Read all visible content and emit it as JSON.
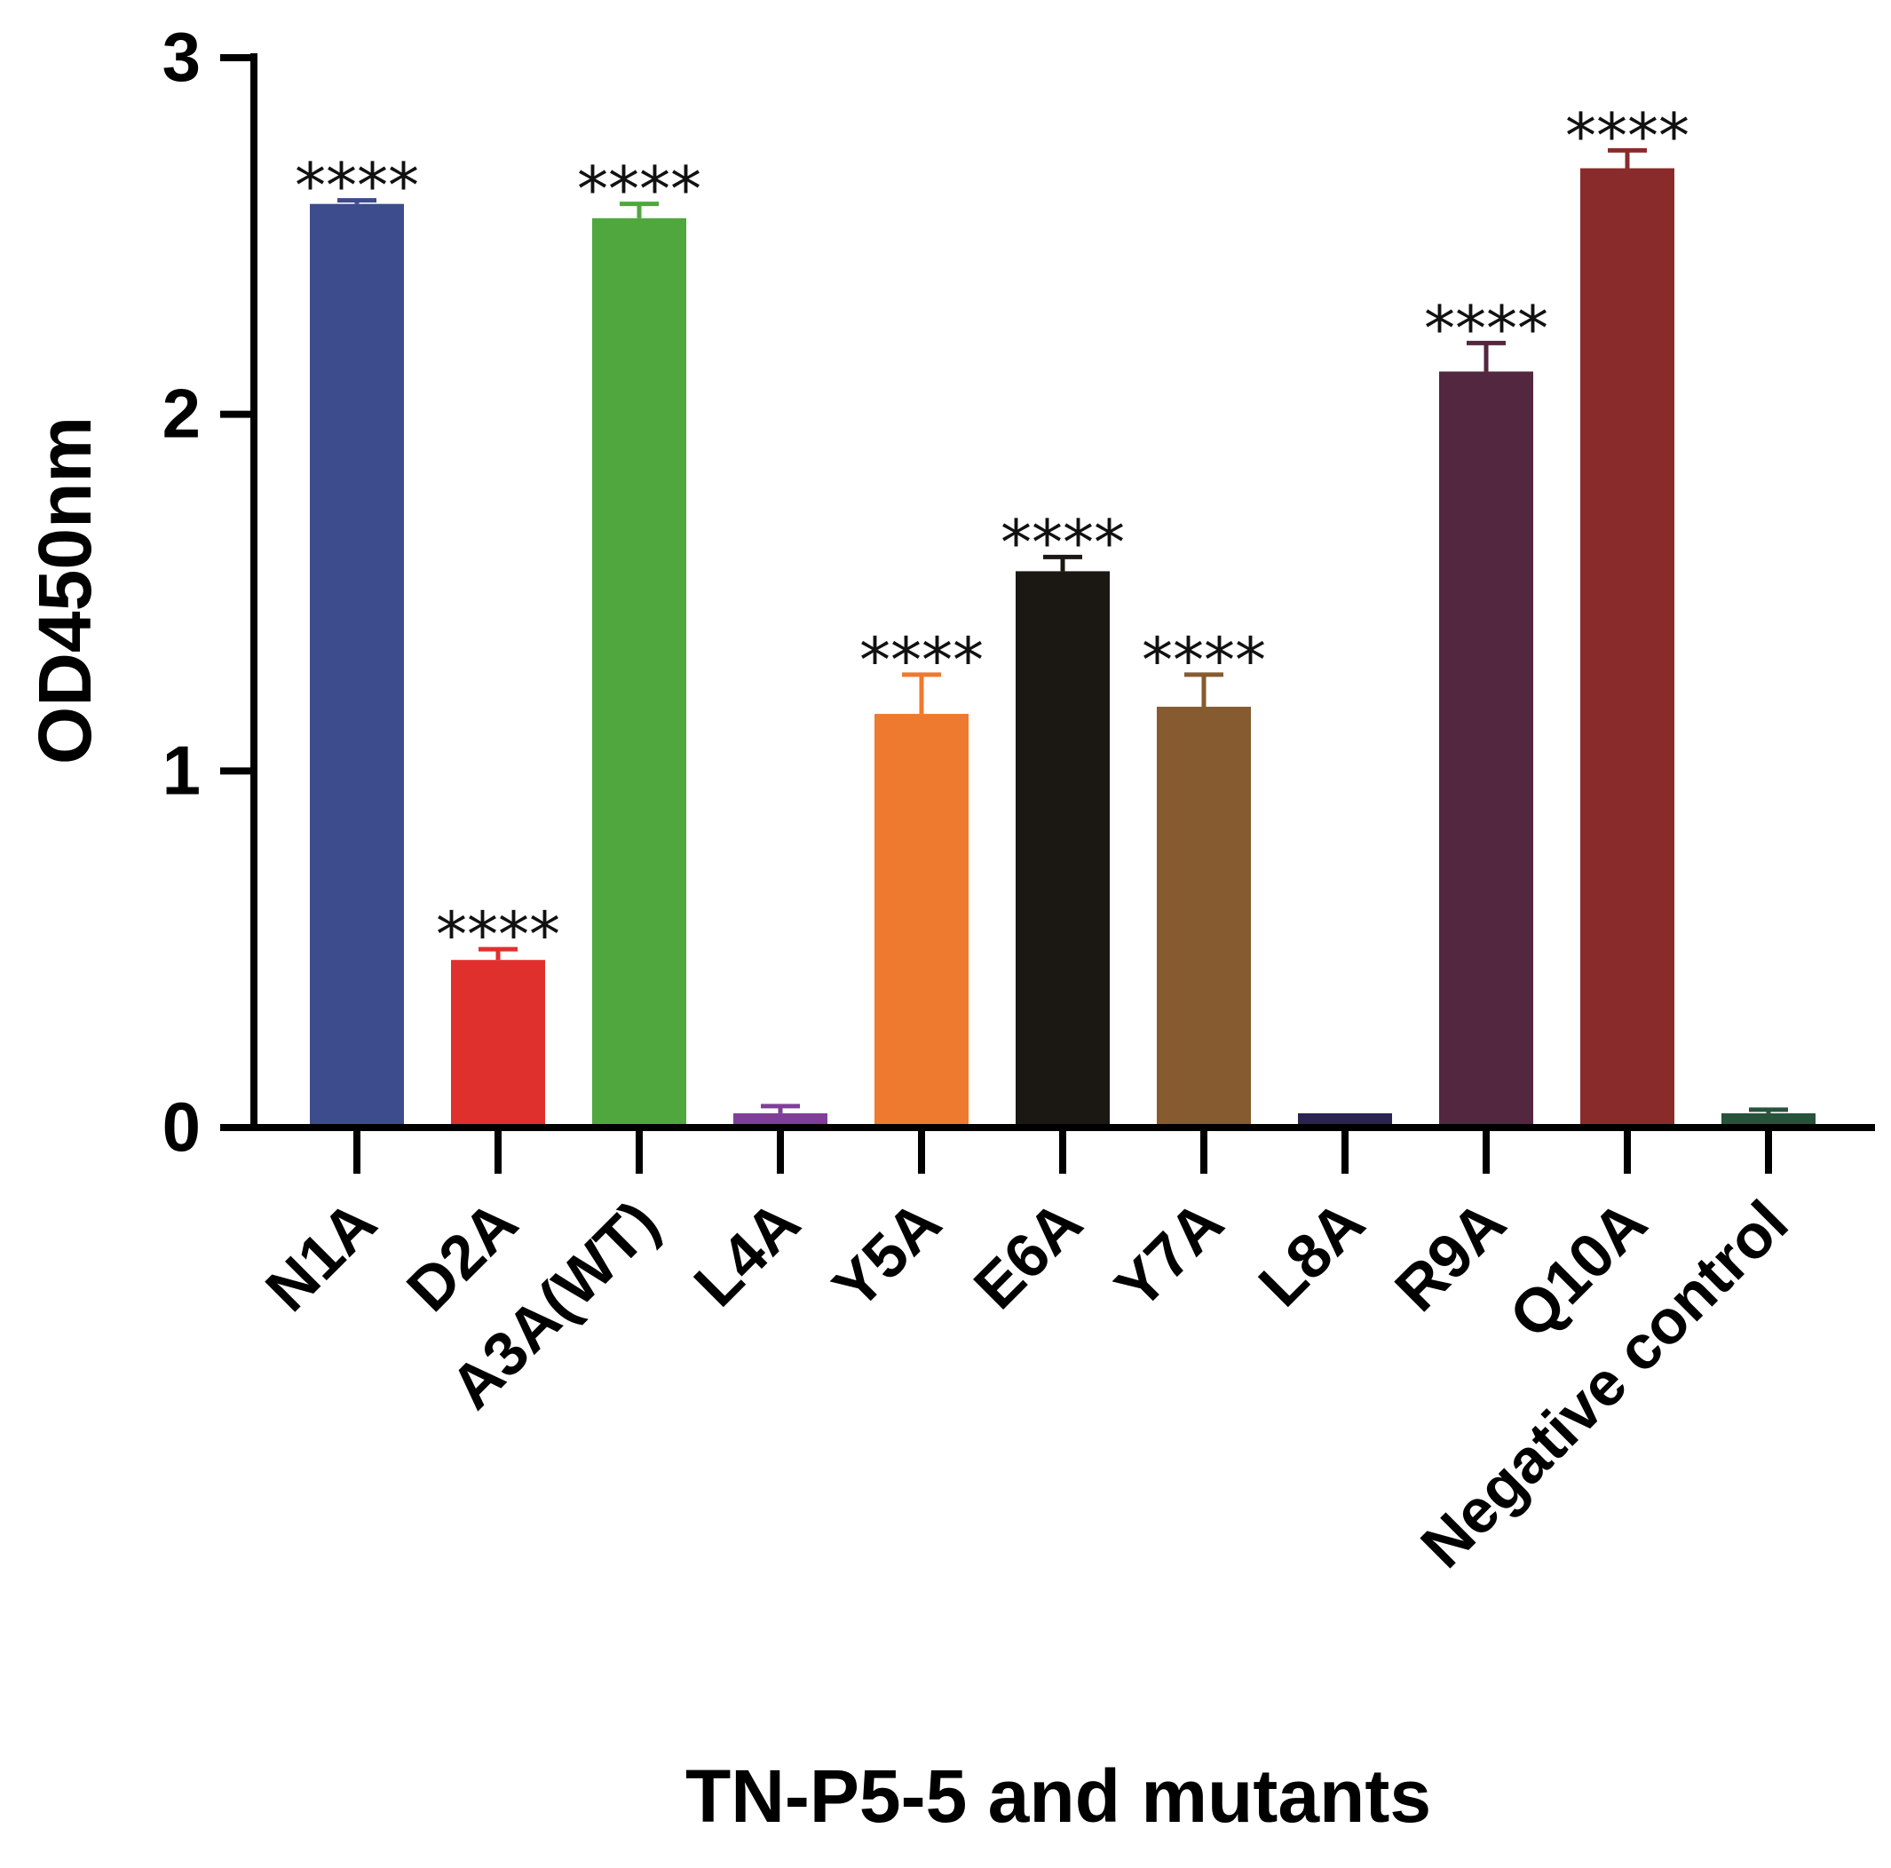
{
  "chart_data": {
    "type": "bar",
    "title": "",
    "xlabel": "TN-P5-5 and mutants",
    "ylabel": "OD450nm",
    "ylim": [
      0,
      3
    ],
    "yticks": [
      0,
      1,
      2,
      3
    ],
    "ytick_labels": [
      "0",
      "1",
      "2",
      "3"
    ],
    "grid": false,
    "legend": "none",
    "categories": [
      "N1A",
      "D2A",
      "A3A(WT)",
      "L4A",
      "Y5A",
      "E6A",
      "Y7A",
      "L8A",
      "R9A",
      "Q10A",
      "Negative control"
    ],
    "values": [
      2.59,
      0.47,
      2.55,
      0.04,
      1.16,
      1.56,
      1.18,
      0.04,
      2.12,
      2.69,
      0.04
    ],
    "errors": [
      0.01,
      0.03,
      0.04,
      0.02,
      0.11,
      0.04,
      0.09,
      0.0,
      0.08,
      0.05,
      0.01
    ],
    "significance": [
      "****",
      "****",
      "****",
      "",
      "****",
      "****",
      "****",
      "",
      "****",
      "****",
      ""
    ],
    "colors": [
      "#3d4c8c",
      "#e0302e",
      "#4fa73e",
      "#7f3f98",
      "#ee7a2f",
      "#1b1813",
      "#855b2f",
      "#2b2350",
      "#53273f",
      "#8a2b2b",
      "#27533b"
    ]
  }
}
